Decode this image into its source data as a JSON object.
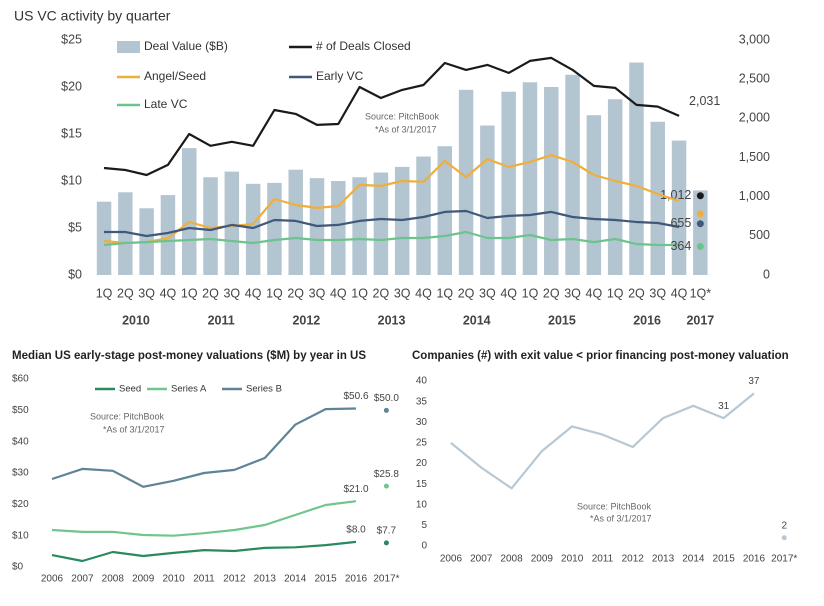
{
  "chart_data": [
    {
      "type": "combo",
      "title": "US VC activity by quarter",
      "categories": [
        "1Q",
        "2Q",
        "3Q",
        "4Q",
        "1Q",
        "2Q",
        "3Q",
        "4Q",
        "1Q",
        "2Q",
        "3Q",
        "4Q",
        "1Q",
        "2Q",
        "3Q",
        "4Q",
        "1Q",
        "2Q",
        "3Q",
        "4Q",
        "1Q",
        "2Q",
        "3Q",
        "4Q",
        "1Q",
        "2Q",
        "3Q",
        "4Q",
        "1Q*"
      ],
      "x_groups": [
        "2010",
        "2011",
        "2012",
        "2013",
        "2014",
        "2015",
        "2016",
        "2017"
      ],
      "ylim": [
        0,
        25
      ],
      "yticks": [
        {
          "value": 0,
          "label": "$0"
        },
        {
          "value": 5,
          "label": "$5"
        },
        {
          "value": 10,
          "label": "$10"
        },
        {
          "value": 15,
          "label": "$15"
        },
        {
          "value": 20,
          "label": "$20"
        },
        {
          "value": 25,
          "label": "$25"
        }
      ],
      "y2lim": [
        0,
        3000
      ],
      "y2ticks": [
        0,
        500,
        {
          "value": 1000,
          "label": "1,000"
        },
        {
          "value": 1500,
          "label": "1,500"
        },
        {
          "value": 2000,
          "label": "2,000"
        },
        {
          "value": 2500,
          "label": "2,500"
        },
        {
          "value": 3000,
          "label": "3,000"
        }
      ],
      "last_point": "dot",
      "series": [
        {
          "name": "Deal Value ($B)",
          "type": "bar",
          "color": "#b3c5d1",
          "values": [
            7.8,
            8.8,
            7.1,
            8.5,
            13.5,
            10.4,
            11.0,
            9.7,
            9.8,
            11.2,
            10.3,
            10.0,
            10.4,
            10.9,
            11.5,
            12.6,
            13.7,
            19.7,
            15.9,
            19.5,
            20.5,
            20.0,
            21.3,
            17.0,
            18.7,
            22.6,
            16.3,
            14.3,
            9.0
          ]
        },
        {
          "name": "# of Deals Closed",
          "type": "line",
          "axis": "y2",
          "color": "#1a1a1a",
          "values": [
            1366,
            1341,
            1277,
            1405,
            1800,
            1650,
            1700,
            1650,
            2107,
            2056,
            1916,
            1928,
            2400,
            2260,
            2363,
            2426,
            2707,
            2618,
            2682,
            2580,
            2733,
            2771,
            2618,
            2414,
            2388,
            2171,
            2150,
            2031,
            1012
          ],
          "value_labels": [
            null,
            null,
            null,
            null,
            null,
            null,
            null,
            null,
            null,
            null,
            null,
            null,
            null,
            null,
            null,
            null,
            null,
            null,
            null,
            null,
            null,
            null,
            null,
            null,
            null,
            null,
            null,
            "2,031",
            "1,012"
          ]
        },
        {
          "name": "Angel/Seed",
          "type": "line",
          "axis": "y2",
          "color": "#f0ae3a",
          "values": [
            434,
            409,
            420,
            470,
            677,
            600,
            626,
            650,
            970,
            894,
            856,
            881,
            1150,
            1137,
            1200,
            1190,
            1456,
            1250,
            1480,
            1380,
            1443,
            1530,
            1443,
            1277,
            1200,
            1137,
            1034,
            945,
            780
          ]
        },
        {
          "name": "Early VC",
          "type": "line",
          "axis": "y2",
          "color": "#40597a",
          "values": [
            549,
            549,
            498,
            536,
            600,
            575,
            639,
            600,
            702,
            690,
            626,
            639,
            690,
            715,
            702,
            741,
            805,
            817,
            728,
            754,
            766,
            805,
            741,
            715,
            702,
            677,
            664,
            613,
            655
          ],
          "value_labels": [
            null,
            null,
            null,
            null,
            null,
            null,
            null,
            null,
            null,
            null,
            null,
            null,
            null,
            null,
            null,
            null,
            null,
            null,
            null,
            null,
            null,
            null,
            null,
            null,
            null,
            null,
            null,
            null,
            "655"
          ]
        },
        {
          "name": "Late VC",
          "type": "line",
          "axis": "y2",
          "color": "#6cc48c",
          "values": [
            383,
            409,
            420,
            434,
            447,
            460,
            434,
            409,
            447,
            472,
            447,
            447,
            460,
            447,
            472,
            472,
            498,
            549,
            472,
            472,
            511,
            447,
            460,
            420,
            460,
            396,
            383,
            383,
            364
          ],
          "value_labels": [
            null,
            null,
            null,
            null,
            null,
            null,
            null,
            null,
            null,
            null,
            null,
            null,
            null,
            null,
            null,
            null,
            null,
            null,
            null,
            null,
            null,
            null,
            null,
            null,
            null,
            null,
            null,
            null,
            "364"
          ]
        }
      ],
      "annotations": [
        "Source: PitchBook",
        "*As of 3/1/2017"
      ]
    },
    {
      "type": "line",
      "title": "Median US early-stage post-money valuations ($M) by year in US",
      "categories": [
        "2006",
        "2007",
        "2008",
        "2009",
        "2010",
        "2011",
        "2012",
        "2013",
        "2014",
        "2015",
        "2016",
        "2017*"
      ],
      "ylim": [
        0,
        60
      ],
      "yticks": [
        {
          "value": 0,
          "label": "$0"
        },
        {
          "value": 10,
          "label": "$10"
        },
        {
          "value": 20,
          "label": "$20"
        },
        {
          "value": 30,
          "label": "$30"
        },
        {
          "value": 40,
          "label": "$40"
        },
        {
          "value": 50,
          "label": "$50"
        },
        {
          "value": 60,
          "label": "$60"
        }
      ],
      "last_point": "dot",
      "series": [
        {
          "name": "Seed",
          "color": "#2a8a5e",
          "values": [
            3.8,
            1.9,
            4.8,
            3.5,
            4.5,
            5.4,
            5.1,
            6.1,
            6.3,
            7.0,
            8.0,
            7.7
          ],
          "value_labels": [
            null,
            null,
            null,
            null,
            null,
            null,
            null,
            null,
            null,
            null,
            "$8.0",
            "$7.7"
          ]
        },
        {
          "name": "Series A",
          "color": "#72c48f",
          "values": [
            11.8,
            11.2,
            11.2,
            10.2,
            10.0,
            10.8,
            11.8,
            13.4,
            16.6,
            19.8,
            21.0,
            25.8
          ],
          "value_labels": [
            null,
            null,
            null,
            null,
            null,
            null,
            null,
            null,
            null,
            null,
            "$21.0",
            "$25.8"
          ]
        },
        {
          "name": "Series B",
          "color": "#5f8397",
          "values": [
            28.1,
            31.3,
            30.7,
            25.6,
            27.5,
            30.0,
            31.0,
            34.8,
            45.4,
            50.4,
            50.6,
            50.0
          ],
          "value_labels": [
            null,
            null,
            null,
            null,
            null,
            null,
            null,
            null,
            null,
            null,
            "$50.6",
            "$50.0"
          ]
        }
      ],
      "annotations": [
        "Source: PitchBook",
        "*As of 3/1/2017"
      ]
    },
    {
      "type": "line",
      "title": "Companies (#) with exit value < prior financing post-money valuation",
      "categories": [
        "2006",
        "2007",
        "2008",
        "2009",
        "2010",
        "2011",
        "2012",
        "2013",
        "2014",
        "2015",
        "2016",
        "2017*"
      ],
      "ylim": [
        0,
        40
      ],
      "yticks": [
        0,
        5,
        10,
        15,
        20,
        25,
        30,
        35,
        40
      ],
      "last_point": "dot",
      "series": [
        {
          "color": "#b7c8d4",
          "values": [
            25,
            19,
            14,
            23,
            29,
            27,
            24,
            31,
            34,
            31,
            37,
            2
          ],
          "value_labels": [
            null,
            null,
            null,
            null,
            null,
            null,
            null,
            null,
            null,
            "31",
            "37",
            "2"
          ]
        }
      ],
      "annotations": [
        "Source: PitchBook",
        "*As of 3/1/2017"
      ]
    }
  ]
}
